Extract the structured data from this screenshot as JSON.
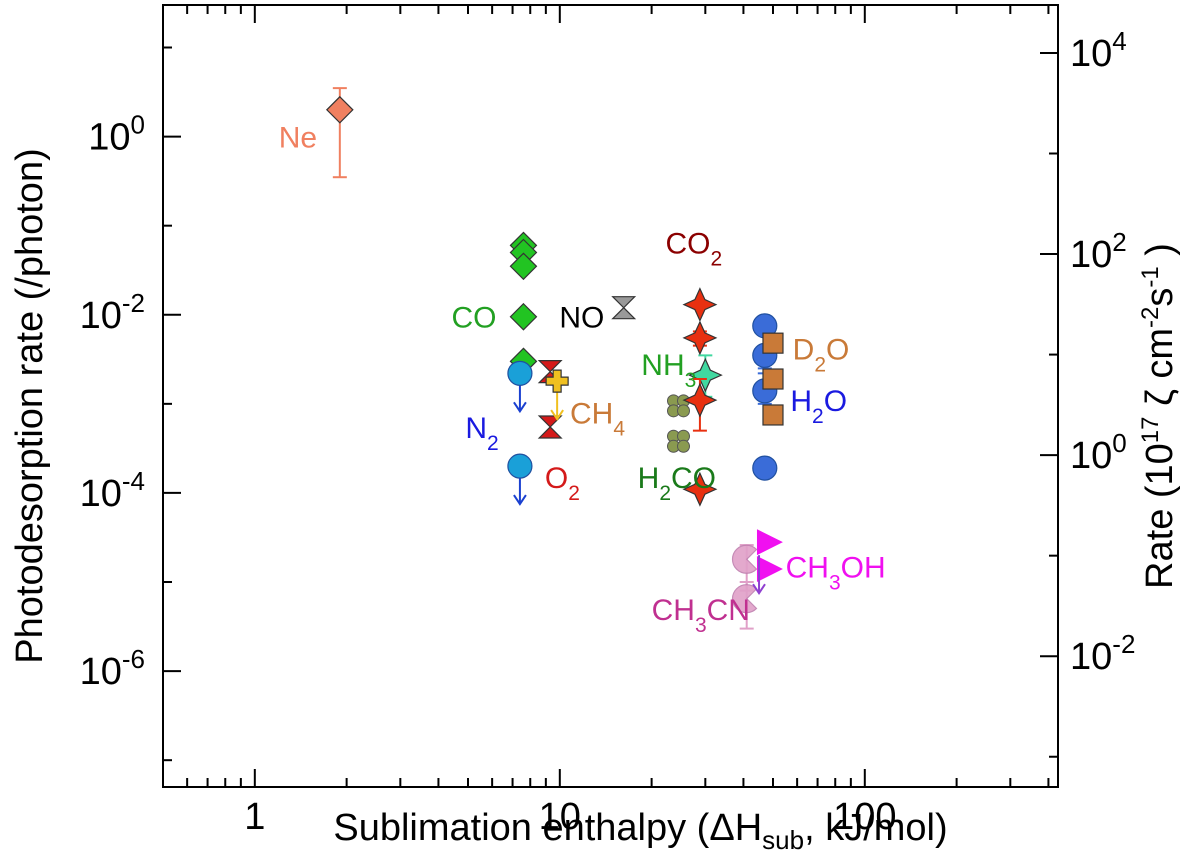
{
  "chart_data": {
    "type": "scatter",
    "xlabel": {
      "main": "Sublimation enthalpy (ΔH",
      "sub": "sub",
      "tail": ", kJ/mol)"
    },
    "ylabel": "Photodesorption rate (/photon)",
    "y2label": {
      "main": "Rate (10",
      "sup1": "17",
      "mid": " ζ cm",
      "sup2": "-2",
      "mid2": "s",
      "sup3": "-1",
      "tail": " )"
    },
    "x_scale": "log",
    "y_scale": "log",
    "xlim": [
      0.5,
      430
    ],
    "ylim": [
      5e-08,
      30.0
    ],
    "y2lim": [
      0.0005,
      30000.0
    ],
    "x_ticks": [
      {
        "v": 1,
        "label": "1"
      },
      {
        "v": 10,
        "label": "10"
      },
      {
        "v": 100,
        "label": "100"
      }
    ],
    "y_ticks": [
      {
        "v": 1,
        "base": "10",
        "exp": "0"
      },
      {
        "v": 0.01,
        "base": "10",
        "exp": "-2"
      },
      {
        "v": 0.0001,
        "base": "10",
        "exp": "-4"
      },
      {
        "v": 1e-06,
        "base": "10",
        "exp": "-6"
      }
    ],
    "y2_ticks": [
      {
        "v": 10000,
        "base": "10",
        "exp": "4"
      },
      {
        "v": 100,
        "base": "10",
        "exp": "2"
      },
      {
        "v": 1,
        "base": "10",
        "exp": "0"
      },
      {
        "v": 0.01,
        "base": "10",
        "exp": "-2"
      }
    ],
    "grid": false,
    "series": [
      {
        "name": "Ne",
        "color": "#f08060",
        "marker": "diamond",
        "points": [
          {
            "x": 1.9,
            "y": 2.0,
            "err": [
              0.35,
              3.5
            ]
          }
        ]
      },
      {
        "name": "CO",
        "color": "#22c422",
        "marker": "diamond",
        "points": [
          {
            "x": 7.6,
            "y": 0.06
          },
          {
            "x": 7.6,
            "y": 0.05
          },
          {
            "x": 7.6,
            "y": 0.035
          },
          {
            "x": 7.6,
            "y": 0.0095
          },
          {
            "x": 7.6,
            "y": 0.003
          }
        ]
      },
      {
        "name": "N2",
        "color": "#1aa0d8",
        "marker": "circle",
        "points": [
          {
            "x": 7.4,
            "y": 0.0022,
            "upper": true
          },
          {
            "x": 7.4,
            "y": 0.0002,
            "upper": true
          }
        ]
      },
      {
        "name": "O2",
        "color": "#d41a1a",
        "marker": "hourglass",
        "points": [
          {
            "x": 9.3,
            "y": 0.0023
          },
          {
            "x": 9.3,
            "y": 0.00055
          }
        ]
      },
      {
        "name": "CH4",
        "color": "#f0c020",
        "marker": "cross",
        "points": [
          {
            "x": 9.8,
            "y": 0.0018,
            "upper": true
          }
        ]
      },
      {
        "name": "NO",
        "color": "#999999",
        "marker": "hourglass",
        "points": [
          {
            "x": 16.2,
            "y": 0.012
          }
        ]
      },
      {
        "name": "H2CO",
        "color": "#8a9a50",
        "marker": "clover",
        "points": [
          {
            "x": 24.5,
            "y": 0.00095
          },
          {
            "x": 24.5,
            "y": 0.00038
          }
        ]
      },
      {
        "name": "NH3",
        "color": "#40d8a0",
        "marker": "star4",
        "points": [
          {
            "x": 30,
            "y": 0.0021,
            "err": [
              0.0012,
              0.0035
            ]
          }
        ]
      },
      {
        "name": "CO2",
        "color": "#e83010",
        "marker": "star4",
        "points": [
          {
            "x": 28.8,
            "y": 0.013
          },
          {
            "x": 28.8,
            "y": 0.0055,
            "err": [
              0.0045,
              0.0065
            ]
          },
          {
            "x": 28.8,
            "y": 0.0011,
            "err": [
              0.0005,
              0.0019
            ]
          },
          {
            "x": 28.8,
            "y": 0.00011
          }
        ]
      },
      {
        "name": "H2O",
        "color": "#3a6cd8",
        "marker": "circle",
        "points": [
          {
            "x": 47,
            "y": 0.0075
          },
          {
            "x": 47,
            "y": 0.0035,
            "err": [
              0.0025,
              0.0078
            ]
          },
          {
            "x": 47,
            "y": 0.0014,
            "err": [
              0.001,
              0.0022
            ]
          },
          {
            "x": 47,
            "y": 0.00019
          }
        ]
      },
      {
        "name": "D2O",
        "color": "#c97a38",
        "marker": "square",
        "points": [
          {
            "x": 50,
            "y": 0.0048
          },
          {
            "x": 50,
            "y": 0.0019
          },
          {
            "x": 50,
            "y": 0.00075
          }
        ]
      },
      {
        "name": "CH3OH",
        "color": "#f010f0",
        "marker": "triangle",
        "points": [
          {
            "x": 48,
            "y": 2.8e-05
          },
          {
            "x": 48,
            "y": 1.4e-05
          }
        ]
      },
      {
        "name": "CH3CN",
        "color": "#e0a0c8",
        "marker": "pacman",
        "points": [
          {
            "x": 41,
            "y": 1.8e-05,
            "err": [
              8e-06,
              2.6e-05
            ]
          },
          {
            "x": 41,
            "y": 6.5e-06,
            "err": [
              3e-06,
              1e-05
            ]
          }
        ]
      },
      {
        "name": "CH3OH upper limits",
        "color": "#9040d0",
        "marker": "arrow",
        "points": [
          {
            "x": 45,
            "y": 2e-05,
            "upper": true
          }
        ]
      }
    ],
    "labels": [
      {
        "parts": [
          {
            "t": "Ne"
          }
        ],
        "x": 1.6,
        "y": 1.0,
        "color": "#f08060",
        "anchor": "end"
      },
      {
        "parts": [
          {
            "t": "CO"
          }
        ],
        "x": 6.2,
        "y": 0.0095,
        "color": "#22a022",
        "anchor": "end"
      },
      {
        "parts": [
          {
            "t": "NO"
          }
        ],
        "x": 14.0,
        "y": 0.0095,
        "color": "#000000",
        "anchor": "end"
      },
      {
        "parts": [
          {
            "t": "CO"
          },
          {
            "t": "2",
            "sub": true
          }
        ],
        "x": 27.5,
        "y": 0.065,
        "color": "#8b0000",
        "anchor": "middle"
      },
      {
        "parts": [
          {
            "t": "D"
          },
          {
            "t": "2",
            "sub": true
          },
          {
            "t": "O"
          }
        ],
        "x": 58,
        "y": 0.0042,
        "color": "#c97a38",
        "anchor": "start"
      },
      {
        "parts": [
          {
            "t": "NH"
          },
          {
            "t": "3",
            "sub": true
          }
        ],
        "x": 18.5,
        "y": 0.0028,
        "color": "#22a022",
        "anchor": "start"
      },
      {
        "parts": [
          {
            "t": "H"
          },
          {
            "t": "2",
            "sub": true
          },
          {
            "t": "O"
          }
        ],
        "x": 57,
        "y": 0.0011,
        "color": "#1a1ae0",
        "anchor": "start"
      },
      {
        "parts": [
          {
            "t": "N"
          },
          {
            "t": "2",
            "sub": true
          }
        ],
        "x": 4.9,
        "y": 0.00055,
        "color": "#1a1ae0",
        "anchor": "start"
      },
      {
        "parts": [
          {
            "t": "CH"
          },
          {
            "t": "4",
            "sub": true
          }
        ],
        "x": 10.8,
        "y": 0.0008,
        "color": "#c97a38",
        "anchor": "start"
      },
      {
        "parts": [
          {
            "t": "O"
          },
          {
            "t": "2",
            "sub": true
          }
        ],
        "x": 10.2,
        "y": 0.00015,
        "color": "#d41a1a",
        "anchor": "middle"
      },
      {
        "parts": [
          {
            "t": "H"
          },
          {
            "t": "2",
            "sub": true
          },
          {
            "t": "CO"
          }
        ],
        "x": 18.0,
        "y": 0.00015,
        "color": "#1a7a1a",
        "anchor": "start"
      },
      {
        "parts": [
          {
            "t": "CH"
          },
          {
            "t": "3",
            "sub": true
          },
          {
            "t": "OH"
          }
        ],
        "x": 55,
        "y": 1.5e-05,
        "color": "#f010f0",
        "anchor": "start"
      },
      {
        "parts": [
          {
            "t": "CH"
          },
          {
            "t": "3",
            "sub": true
          },
          {
            "t": "CN"
          }
        ],
        "x": 20.0,
        "y": 5e-06,
        "color": "#c03090",
        "anchor": "start"
      }
    ]
  }
}
